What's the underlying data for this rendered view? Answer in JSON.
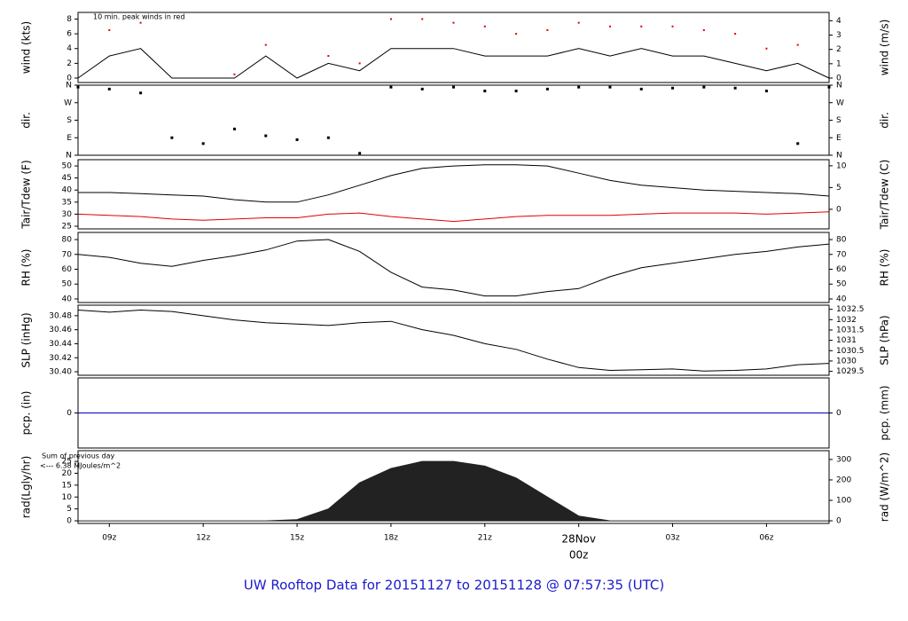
{
  "title": "UW Rooftop Data for 20151127  to  20151128 @ 07:57:35  (UTC)",
  "chart_data": [
    {
      "type": "line",
      "ylabel": "wind (kts)",
      "y2label": "wind (m/s)",
      "annotation": "10 min. peak winds in red",
      "annotation_color": "#e00000",
      "x": [
        8,
        9,
        10,
        11,
        12,
        13,
        14,
        15,
        16,
        17,
        18,
        19,
        20,
        21,
        22,
        23,
        24,
        25,
        26,
        27,
        28,
        29,
        30,
        31,
        32
      ],
      "xlim": [
        8,
        32
      ],
      "ylim": [
        -0.6,
        8.9
      ],
      "yticks": [
        0,
        2,
        4,
        6,
        8
      ],
      "y2lim": [
        -0.31,
        4.58
      ],
      "y2ticks": [
        0,
        1,
        2,
        3,
        4
      ],
      "series": [
        {
          "color": "#000000",
          "style": "line",
          "values": [
            0,
            3,
            4,
            0,
            0,
            0,
            3,
            0,
            2,
            1,
            4,
            4,
            4,
            3,
            3,
            3,
            4,
            3,
            4,
            3,
            3,
            2,
            1,
            2,
            0
          ]
        },
        {
          "color": "#e00000",
          "style": "dots",
          "values": [
            null,
            6.5,
            7.5,
            null,
            null,
            0.5,
            4.5,
            null,
            3,
            2,
            8,
            8,
            7.5,
            7,
            6,
            6.5,
            7.5,
            7,
            7,
            7,
            6.5,
            6,
            4,
            4.5,
            null
          ]
        }
      ]
    },
    {
      "type": "scatter",
      "ylabel": "dir.",
      "y2label": "dir.",
      "x": [
        8,
        9,
        10,
        11,
        12,
        13,
        14,
        15,
        16,
        17,
        18,
        19,
        20,
        21,
        22,
        23,
        24,
        25,
        26,
        27,
        28,
        29,
        30,
        31,
        32
      ],
      "xlim": [
        8,
        32
      ],
      "ylim": [
        0,
        360
      ],
      "yticks": [
        {
          "value": 360,
          "label": "N"
        },
        {
          "value": 270,
          "label": "W"
        },
        {
          "value": 180,
          "label": "S"
        },
        {
          "value": 90,
          "label": "E"
        },
        {
          "value": 0,
          "label": "N"
        }
      ],
      "y2lim": [
        0,
        360
      ],
      "y2ticks": [
        {
          "value": 360,
          "label": "N"
        },
        {
          "value": 270,
          "label": "W"
        },
        {
          "value": 180,
          "label": "S"
        },
        {
          "value": 90,
          "label": "E"
        },
        {
          "value": 0,
          "label": "N"
        }
      ],
      "series": [
        {
          "color": "#000000",
          "values": [
            350,
            340,
            320,
            90,
            60,
            135,
            100,
            80,
            90,
            10,
            350,
            340,
            350,
            330,
            330,
            340,
            350,
            350,
            340,
            345,
            350,
            345,
            330,
            60,
            350
          ]
        }
      ]
    },
    {
      "type": "line",
      "ylabel": "Tair/Tdew (F)",
      "y2label": "Tair/Tdew (C)",
      "x": [
        8,
        9,
        10,
        11,
        12,
        13,
        14,
        15,
        16,
        17,
        18,
        19,
        20,
        21,
        22,
        23,
        24,
        25,
        26,
        27,
        28,
        29,
        30,
        31,
        32
      ],
      "xlim": [
        8,
        32
      ],
      "ylim": [
        23.9,
        52.6
      ],
      "yticks": [
        25,
        30,
        35,
        40,
        45,
        50
      ],
      "y2lim": [
        -4.5,
        11.4
      ],
      "y2ticks": [
        0,
        5,
        10
      ],
      "series": [
        {
          "color": "#000000",
          "style": "line",
          "values": [
            39,
            39,
            38.5,
            38,
            37.5,
            36,
            35,
            35,
            38,
            42,
            46,
            49,
            50,
            50.5,
            50.5,
            50,
            47,
            44,
            42,
            41,
            40,
            39.5,
            39,
            38.5,
            37.5
          ]
        },
        {
          "color": "#e00000",
          "style": "line",
          "values": [
            30,
            29.5,
            29,
            28,
            27.5,
            28,
            28.5,
            28.5,
            30,
            30.5,
            29,
            28,
            27,
            28,
            29,
            29.5,
            29.5,
            29.5,
            30,
            30.5,
            30.5,
            30.5,
            30,
            30.5,
            31
          ]
        }
      ]
    },
    {
      "type": "line",
      "ylabel": "RH (%)",
      "y2label": "RH (%)",
      "x": [
        8,
        9,
        10,
        11,
        12,
        13,
        14,
        15,
        16,
        17,
        18,
        19,
        20,
        21,
        22,
        23,
        24,
        25,
        26,
        27,
        28,
        29,
        30,
        31,
        32
      ],
      "xlim": [
        8,
        32
      ],
      "ylim": [
        37.6,
        84.8
      ],
      "yticks": [
        40,
        50,
        60,
        70,
        80
      ],
      "y2lim": [
        37.6,
        84.8
      ],
      "y2ticks": [
        40,
        50,
        60,
        70,
        80
      ],
      "series": [
        {
          "color": "#000000",
          "style": "line",
          "values": [
            70,
            68,
            64,
            62,
            66,
            69,
            73,
            79,
            80,
            72,
            58,
            48,
            46,
            42,
            42,
            45,
            47,
            55,
            61,
            64,
            67,
            70,
            72,
            75,
            77
          ]
        }
      ]
    },
    {
      "type": "line",
      "ylabel": "SLP (inHg)",
      "y2label": "SLP (hPa)",
      "x": [
        8,
        9,
        10,
        11,
        12,
        13,
        14,
        15,
        16,
        17,
        18,
        19,
        20,
        21,
        22,
        23,
        24,
        25,
        26,
        27,
        28,
        29,
        30,
        31,
        32
      ],
      "xlim": [
        8,
        32
      ],
      "ylim": [
        30.395,
        30.495
      ],
      "yticks": [
        {
          "value": 30.4,
          "label": "30.40"
        },
        30.42,
        30.44,
        30.46,
        30.48
      ],
      "y2lim": [
        1029.31,
        1032.7
      ],
      "y2ticks": [
        1029.5,
        1030,
        1030.5,
        1031,
        1031.5,
        1032,
        1032.5
      ],
      "series": [
        {
          "color": "#000000",
          "style": "line",
          "values": [
            30.488,
            30.485,
            30.488,
            30.486,
            30.48,
            30.474,
            30.47,
            30.468,
            30.466,
            30.47,
            30.472,
            30.46,
            30.452,
            30.44,
            30.432,
            30.418,
            30.406,
            30.402,
            30.403,
            30.404,
            30.401,
            30.402,
            30.404,
            30.41,
            30.412
          ]
        }
      ]
    },
    {
      "type": "line",
      "ylabel": "pcp. (in)",
      "y2label": "pcp. (mm)",
      "x": [
        8,
        9,
        10,
        11,
        12,
        13,
        14,
        15,
        16,
        17,
        18,
        19,
        20,
        21,
        22,
        23,
        24,
        25,
        26,
        27,
        28,
        29,
        30,
        31,
        32
      ],
      "xlim": [
        8,
        32
      ],
      "ylim": [
        -0.1,
        0.1
      ],
      "yticks": [
        0
      ],
      "y2lim": [
        -2.54,
        2.54
      ],
      "y2ticks": [
        0
      ],
      "series": [
        {
          "color": "#0000cc",
          "style": "line",
          "values": [
            0,
            0,
            0,
            0,
            0,
            0,
            0,
            0,
            0,
            0,
            0,
            0,
            0,
            0,
            0,
            0,
            0,
            0,
            0,
            0,
            0,
            0,
            0,
            0,
            0
          ]
        }
      ]
    },
    {
      "type": "area",
      "ylabel": "rad(Lgly/hr)",
      "y2label": "rad (W/m^2)",
      "annotations": [
        "Sum of previous day",
        "<--- 6.38 MJoules/m^2"
      ],
      "annotation_color": "#9900cc",
      "x": [
        8,
        9,
        10,
        11,
        12,
        13,
        14,
        15,
        16,
        17,
        18,
        19,
        20,
        21,
        22,
        23,
        24,
        25,
        26,
        27,
        28,
        29,
        30,
        31,
        32
      ],
      "xlim": [
        8,
        32
      ],
      "xticks": [
        {
          "value": 9,
          "label": "09z"
        },
        {
          "value": 12,
          "label": "12z"
        },
        {
          "value": 15,
          "label": "15z"
        },
        {
          "value": 18,
          "label": "18z"
        },
        {
          "value": 21,
          "label": "21z"
        },
        {
          "value": 24,
          "label": "28Nov",
          "sublabel": "00z",
          "color": "#e00000"
        },
        {
          "value": 27,
          "label": "03z"
        },
        {
          "value": 30,
          "label": "06z"
        }
      ],
      "ylim": [
        -1.1,
        29.5
      ],
      "yticks": [
        0,
        5,
        10,
        15,
        20,
        25
      ],
      "y2lim": [
        -12.8,
        343
      ],
      "y2ticks": [
        0,
        100,
        200,
        300
      ],
      "series": [
        {
          "color": "#222222",
          "style": "area",
          "values": [
            0,
            0,
            0,
            0,
            0,
            0,
            0,
            0.5,
            5,
            16,
            22,
            25,
            25,
            23,
            18,
            10,
            2,
            0,
            0,
            0,
            0,
            0,
            0,
            0,
            0
          ]
        }
      ]
    }
  ]
}
